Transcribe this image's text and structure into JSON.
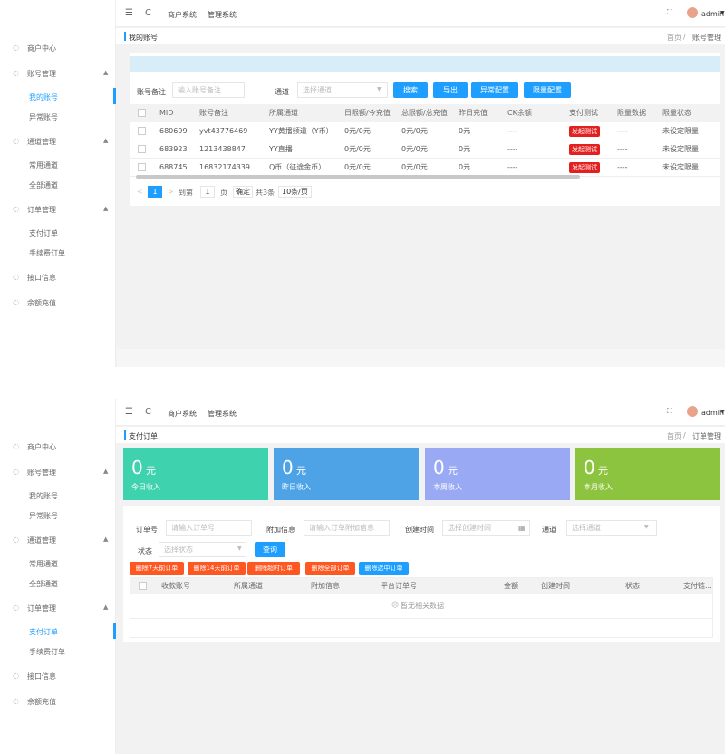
{
  "screens": [
    {
      "topbar": {
        "tabs": [
          "商户系统",
          "管理系统"
        ],
        "user": "admin"
      },
      "sidebar": [
        {
          "label": "商户中心"
        },
        {
          "label": "账号管理",
          "children": [
            "我的账号",
            "异常账号"
          ]
        },
        {
          "label": "通道管理",
          "children": [
            "常用通道",
            "全部通道"
          ]
        },
        {
          "label": "订单管理",
          "children": [
            "支付订单",
            "手续费订单"
          ]
        },
        {
          "label": "接口信息"
        },
        {
          "label": "余额充值"
        }
      ],
      "active": "我的账号",
      "page_title": "我的账号",
      "breadcrumb": [
        "首页",
        "账号管理"
      ],
      "filters": [
        {
          "label": "账号备注",
          "placeholder": "输入账号备注"
        },
        {
          "label": "通道",
          "placeholder": "选择通道"
        }
      ],
      "buttons": [
        "搜索",
        "导出",
        "异常配置",
        "限量配置"
      ],
      "table": {
        "columns": [
          "MID",
          "账号备注",
          "所属通道",
          "日限额/今充值",
          "总限额/总充值",
          "昨日充值",
          "CK余额",
          "支付测试",
          "限量数据",
          "限量状态"
        ],
        "rows": [
          [
            "680699",
            "yvt43776469",
            "YY黄播频道（Y币）",
            "0元/0元",
            "0元/0元",
            "0元",
            "----",
            "发起测试",
            "----",
            "未设定限量"
          ],
          [
            "683923",
            "1213438847",
            "YY直播",
            "0元/0元",
            "0元/0元",
            "0元",
            "----",
            "发起测试",
            "----",
            "未设定限量"
          ],
          [
            "688745",
            "16832174339",
            "Q币（征途金币）",
            "0元/0元",
            "0元/0元",
            "0元",
            "----",
            "发起测试",
            "----",
            "未设定限量"
          ]
        ]
      },
      "pagination": {
        "current": "1",
        "goto_prefix": "到第",
        "goto_value": "1",
        "goto_suffix": "页",
        "confirm": "确定",
        "total": "共3条",
        "page_size": "10条/页"
      }
    },
    {
      "topbar": {
        "tabs": [
          "商户系统",
          "管理系统"
        ],
        "user": "admin"
      },
      "sidebar": [
        {
          "label": "商户中心"
        },
        {
          "label": "账号管理",
          "children": [
            "我的账号",
            "异常账号"
          ]
        },
        {
          "label": "通道管理",
          "children": [
            "常用通道",
            "全部通道"
          ]
        },
        {
          "label": "订单管理",
          "children": [
            "支付订单",
            "手续费订单"
          ]
        },
        {
          "label": "接口信息"
        },
        {
          "label": "余额充值"
        }
      ],
      "active": "支付订单",
      "page_title": "支付订单",
      "breadcrumb": [
        "首页",
        "订单管理"
      ],
      "stats": [
        {
          "value": "0",
          "unit": "元",
          "label": "今日收入",
          "color": "#3fd2ae"
        },
        {
          "value": "0",
          "unit": "元",
          "label": "昨日收入",
          "color": "#4ea3e6"
        },
        {
          "value": "0",
          "unit": "元",
          "label": "本周收入",
          "color": "#9aa9f3"
        },
        {
          "value": "0",
          "unit": "元",
          "label": "本月收入",
          "color": "#8dc43f"
        }
      ],
      "filters": [
        {
          "label": "订单号",
          "placeholder": "请输入订单号"
        },
        {
          "label": "附加信息",
          "placeholder": "请输入订单附加信息"
        },
        {
          "label": "创建时间",
          "placeholder": "选择创建时间"
        },
        {
          "label": "通道",
          "placeholder": "选择通道"
        },
        {
          "label": "状态",
          "placeholder": "选择状态"
        }
      ],
      "search_button": "查询",
      "actions": [
        "删除7天前订单",
        "删除14天前订单",
        "删除超时订单",
        "删除全部订单",
        "删除选中订单"
      ],
      "table": {
        "columns": [
          "收款账号",
          "所属通道",
          "附加信息",
          "平台订单号",
          "金额",
          "创建时间",
          "状态",
          "支付链..."
        ],
        "empty": "暂无相关数据"
      }
    }
  ]
}
